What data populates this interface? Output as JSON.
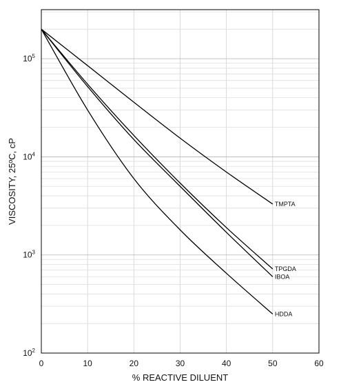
{
  "chart_data": {
    "type": "line",
    "title": "",
    "xlabel": "% REACTIVE DILUENT",
    "ylabel": "VISCOSITY, 25ºC, cP",
    "x_scale": "linear",
    "y_scale": "log",
    "xlim": [
      0,
      60
    ],
    "ylim": [
      100,
      316228
    ],
    "x_ticks": [
      "0",
      "10",
      "20",
      "30",
      "40",
      "50",
      "60"
    ],
    "y_ticks": [
      {
        "base": "10",
        "exp": "2",
        "value": 100
      },
      {
        "base": "10",
        "exp": "3",
        "value": 1000
      },
      {
        "base": "10",
        "exp": "4",
        "value": 10000
      },
      {
        "base": "10",
        "exp": "5",
        "value": 100000
      }
    ],
    "grid": true,
    "series": [
      {
        "name": "TMPTA",
        "x": [
          0,
          10,
          20,
          30,
          40,
          50
        ],
        "y": [
          200000,
          85000,
          36000,
          15500,
          7000,
          3300
        ]
      },
      {
        "name": "TPGDA",
        "x": [
          0,
          10,
          20,
          30,
          40,
          50
        ],
        "y": [
          200000,
          55000,
          16500,
          5400,
          1900,
          720
        ]
      },
      {
        "name": "IBOA",
        "x": [
          0,
          10,
          20,
          30,
          40,
          50
        ],
        "y": [
          200000,
          52000,
          15000,
          5000,
          1700,
          600
        ]
      },
      {
        "name": "HDDA",
        "x": [
          0,
          10,
          20,
          30,
          40,
          50
        ],
        "y": [
          200000,
          30000,
          6000,
          1800,
          650,
          250
        ]
      }
    ]
  }
}
